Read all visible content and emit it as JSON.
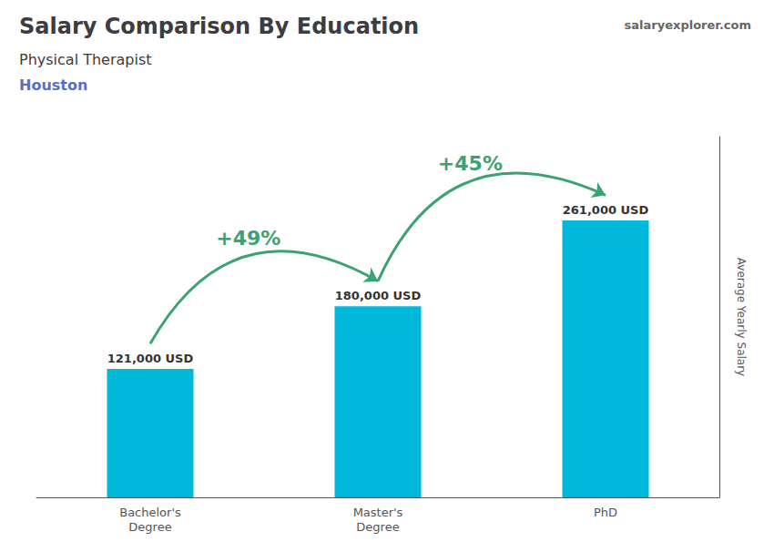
{
  "chart_data": {
    "type": "bar",
    "title": "Salary Comparison By Education",
    "subtitle": "Physical Therapist",
    "annotations": [
      {
        "text": "Houston"
      },
      {
        "text": "salaryexplorer.com"
      },
      {
        "text": "+49%",
        "from": "Bachelor's\nDegree",
        "to": "Master's\nDegree"
      },
      {
        "text": "+45%",
        "from": "Master's\nDegree",
        "to": "PhD"
      }
    ],
    "categories": [
      "Bachelor's\nDegree",
      "Master's\nDegree",
      "PhD"
    ],
    "values": [
      121000,
      180000,
      261000
    ],
    "value_labels": [
      "121,000 USD",
      "180,000 USD",
      "261,000 USD"
    ],
    "data_labels": true,
    "color": "#00b8d9",
    "ylabel": "Average Yearly Salary",
    "ylim": [
      0,
      340000
    ],
    "tick_labels": "x",
    "grid": false
  }
}
